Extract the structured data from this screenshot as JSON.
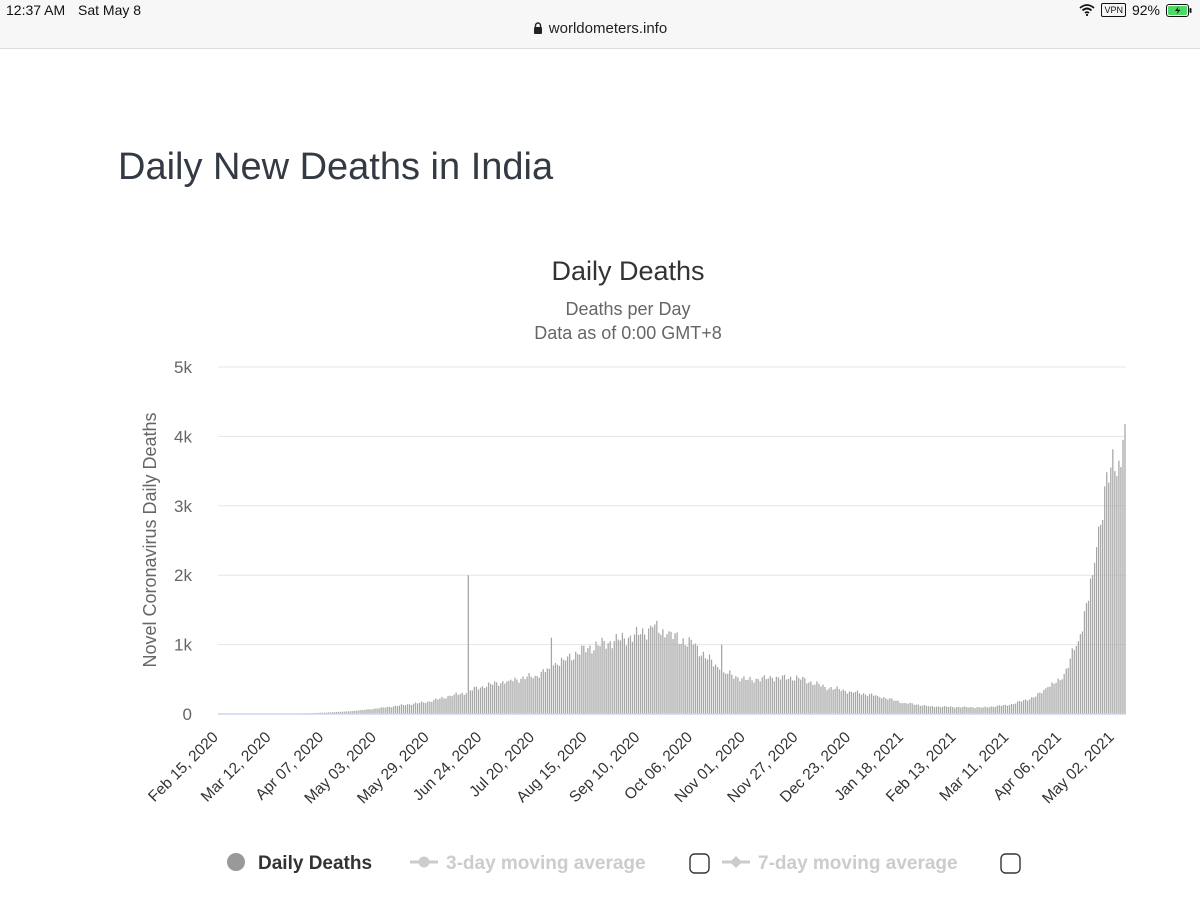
{
  "status_bar": {
    "time": "12:37 AM",
    "date": "Sat May 8",
    "vpn": "VPN",
    "battery": "92%"
  },
  "browser": {
    "url": "worldometers.info"
  },
  "page": {
    "heading": "Daily New Deaths in India"
  },
  "colors": {
    "bar": "#a6a6a6",
    "grid": "#e6e6e6",
    "baseline": "#ccd6eb",
    "inactive": "#cccccc"
  },
  "icons": [
    "wifi-icon",
    "lock-icon",
    "battery-icon",
    "checkbox-icon"
  ],
  "legend": {
    "items": [
      {
        "label": "Daily Deaths",
        "active": true
      },
      {
        "label": "3-day moving average",
        "active": false
      },
      {
        "label": "7-day moving average",
        "active": false
      }
    ]
  },
  "chart_data": {
    "type": "bar",
    "title": "Daily Deaths",
    "subtitle": "Deaths per Day",
    "subtitle2": "Data as of 0:00 GMT+8",
    "ylabel": "Novel Coronavirus Daily Deaths",
    "ylim": [
      0,
      5000
    ],
    "yticks": [
      "0",
      "1k",
      "2k",
      "3k",
      "4k",
      "5k"
    ],
    "yticks_values": [
      0,
      1000,
      2000,
      3000,
      4000,
      5000
    ],
    "grid": true,
    "legend_position": "bottom",
    "xrange": [
      "2020-02-15",
      "2021-05-07"
    ],
    "xticks": [
      "Feb 15, 2020",
      "Mar 12, 2020",
      "Apr 07, 2020",
      "May 03, 2020",
      "May 29, 2020",
      "Jun 24, 2020",
      "Jul 20, 2020",
      "Aug 15, 2020",
      "Sep 10, 2020",
      "Oct 06, 2020",
      "Nov 01, 2020",
      "Nov 27, 2020",
      "Dec 23, 2020",
      "Jan 18, 2021",
      "Feb 13, 2021",
      "Mar 11, 2021",
      "Apr 06, 2021",
      "May 02, 2021"
    ],
    "x": [
      "2020-02-15",
      "2020-03-12",
      "2020-03-25",
      "2020-04-07",
      "2020-04-20",
      "2020-05-03",
      "2020-05-16",
      "2020-05-29",
      "2020-06-10",
      "2020-06-16",
      "2020-06-17",
      "2020-06-18",
      "2020-06-24",
      "2020-07-07",
      "2020-07-20",
      "2020-07-27",
      "2020-07-28",
      "2020-07-29",
      "2020-08-03",
      "2020-08-15",
      "2020-08-28",
      "2020-09-10",
      "2020-09-16",
      "2020-09-23",
      "2020-10-06",
      "2020-10-19",
      "2020-10-20",
      "2020-10-21",
      "2020-11-01",
      "2020-11-14",
      "2020-11-27",
      "2020-12-10",
      "2020-12-23",
      "2021-01-05",
      "2021-01-18",
      "2021-01-31",
      "2021-02-13",
      "2021-02-26",
      "2021-03-11",
      "2021-03-24",
      "2021-03-30",
      "2021-04-06",
      "2021-04-10",
      "2021-04-14",
      "2021-04-18",
      "2021-04-21",
      "2021-04-24",
      "2021-04-27",
      "2021-04-30",
      "2021-05-02",
      "2021-05-04",
      "2021-05-06",
      "2021-05-07"
    ],
    "values": [
      0,
      2,
      6,
      20,
      40,
      80,
      130,
      180,
      280,
      300,
      2000,
      340,
      400,
      480,
      550,
      650,
      1100,
      700,
      780,
      950,
      1050,
      1150,
      1250,
      1150,
      1000,
      640,
      1000,
      600,
      490,
      520,
      520,
      390,
      320,
      260,
      160,
      110,
      100,
      95,
      130,
      250,
      390,
      500,
      800,
      1050,
      1600,
      2000,
      2700,
      3280,
      3550,
      3500,
      3650,
      3950,
      4180
    ]
  }
}
